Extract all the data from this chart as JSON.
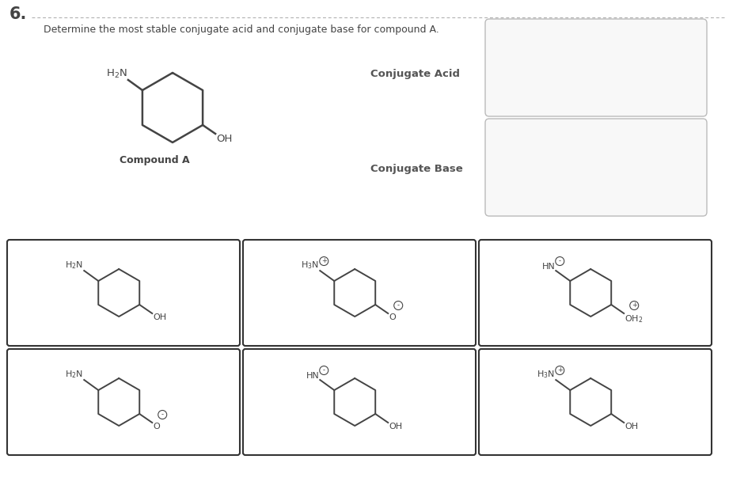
{
  "title_number": "6.",
  "question_text": "Determine the most stable conjugate acid and conjugate base for compound A.",
  "background_color": "#ffffff",
  "line_color": "#444444",
  "answer_box_fill": "#f8f8f8",
  "answer_box_border": "#bbbbbb",
  "molecule_box_border": "#333333",
  "molecule_box_fill": "#ffffff",
  "labels": {
    "conjugate_acid": "Conjugate Acid",
    "conjugate_base": "Conjugate Base",
    "compound_a": "Compound A"
  },
  "mol_configs": [
    {
      "nh": "H$_2$N",
      "oh": "OH",
      "cn": null,
      "co": null
    },
    {
      "nh": "H$_3$N",
      "oh": "O",
      "cn": "+",
      "co": "-"
    },
    {
      "nh": "HN",
      "oh": "OH$_2$",
      "cn": "-",
      "co": "+"
    },
    {
      "nh": "H$_2$N",
      "oh": "O",
      "cn": null,
      "co": "-"
    },
    {
      "nh": "HN",
      "oh": "OH",
      "cn": "-",
      "co": null
    },
    {
      "nh": "H$_3$N",
      "oh": "OH",
      "cn": "+",
      "co": null
    }
  ]
}
